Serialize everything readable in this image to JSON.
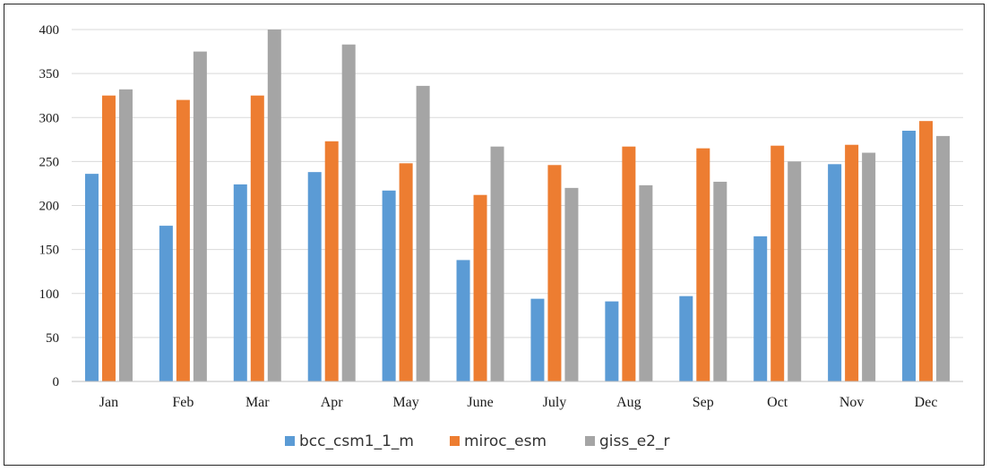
{
  "chart_data": {
    "type": "bar",
    "title": "",
    "xlabel": "",
    "ylabel": "",
    "ylim": [
      0,
      400
    ],
    "yticks": [
      0,
      50,
      100,
      150,
      200,
      250,
      300,
      350,
      400
    ],
    "grid": true,
    "legend_position": "bottom",
    "categories": [
      "Jan",
      "Feb",
      "Mar",
      "Apr",
      "May",
      "June",
      "July",
      "Aug",
      "Sep",
      "Oct",
      "Nov",
      "Dec"
    ],
    "series": [
      {
        "name": "bcc_csm1_1_m",
        "color": "#5B9BD5",
        "values": [
          236,
          177,
          224,
          238,
          217,
          138,
          94,
          91,
          97,
          165,
          247,
          285
        ]
      },
      {
        "name": "miroc_esm",
        "color": "#ED7D31",
        "values": [
          325,
          320,
          325,
          273,
          248,
          212,
          246,
          267,
          265,
          268,
          269,
          296
        ]
      },
      {
        "name": "giss_e2_r",
        "color": "#A5A5A5",
        "values": [
          332,
          375,
          401,
          383,
          336,
          267,
          220,
          223,
          227,
          250,
          260,
          279
        ]
      }
    ]
  }
}
